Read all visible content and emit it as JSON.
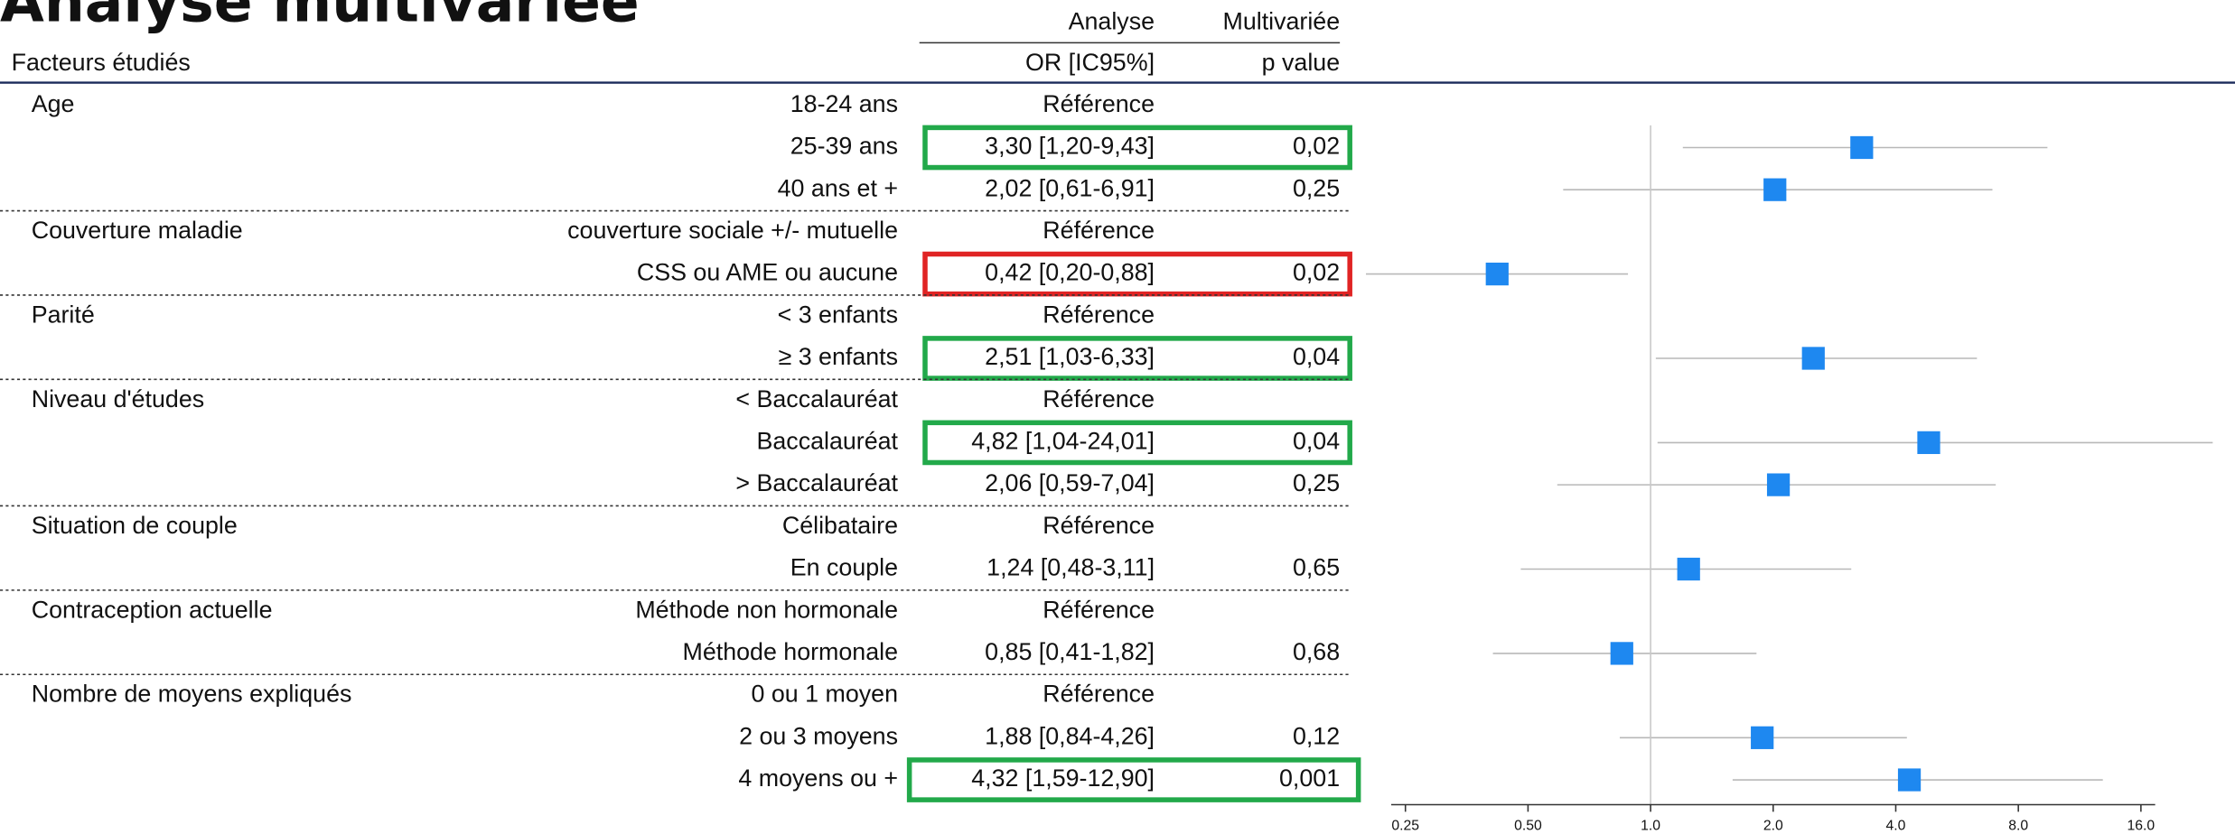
{
  "chart_data": {
    "type": "forest",
    "title": "Analyse multivariée",
    "header": [
      "Analyse",
      "Multivariée"
    ],
    "columns": [
      "Facteurs étudiés",
      "OR [IC95%]",
      "p value"
    ],
    "log_scale": true,
    "marker_color": "#1e88f0",
    "ci_color": "#b8b8b8",
    "xlim": [
      0.25,
      16
    ],
    "xticks": [
      0.25,
      {
        "value": 0.5,
        "label": "0.50"
      },
      {
        "value": 1,
        "label": "1.0"
      },
      {
        "value": 2,
        "label": "2.0"
      },
      {
        "value": 4,
        "label": "4.0"
      },
      {
        "value": 8,
        "label": "8.0"
      },
      {
        "value": 16,
        "label": "16.0"
      }
    ],
    "groups": [
      {
        "name": "Age",
        "levels": [
          {
            "label": "18-24 ans",
            "text": "Référence"
          },
          {
            "label": "25-39 ans",
            "text": "3,30 [1,20-9,43]",
            "p": "0,02",
            "or": 3.3,
            "lo": 1.2,
            "hi": 9.43,
            "highlight": "#22a94a"
          },
          {
            "label": "40 ans et +",
            "text": "2,02 [0,61-6,91]",
            "p": "0,25",
            "or": 2.02,
            "lo": 0.61,
            "hi": 6.91
          }
        ]
      },
      {
        "name": "Couverture maladie",
        "levels": [
          {
            "label": "couverture sociale +/-  mutuelle",
            "text": "Référence"
          },
          {
            "label": "CSS ou AME ou aucune",
            "text": "0,42 [0,20-0,88]",
            "p": "0,02",
            "or": 0.42,
            "lo": 0.2,
            "hi": 0.88,
            "highlight": "#e02424"
          }
        ]
      },
      {
        "name": "Parité",
        "levels": [
          {
            "label": "< 3 enfants",
            "text": "Référence"
          },
          {
            "label": "≥ 3 enfants",
            "text": "2,51 [1,03-6,33]",
            "p": "0,04",
            "or": 2.51,
            "lo": 1.03,
            "hi": 6.33,
            "highlight": "#22a94a"
          }
        ]
      },
      {
        "name": "Niveau d'études",
        "levels": [
          {
            "label": "< Baccalauréat",
            "text": "Référence"
          },
          {
            "label": "Baccalauréat",
            "text": "4,82 [1,04-24,01]",
            "p": "0,04",
            "or": 4.82,
            "lo": 1.04,
            "hi": 24.01,
            "highlight": "#22a94a"
          },
          {
            "label": "> Baccalauréat",
            "text": "2,06 [0,59-7,04]",
            "p": "0,25",
            "or": 2.06,
            "lo": 0.59,
            "hi": 7.04
          }
        ]
      },
      {
        "name": "Situation de couple",
        "levels": [
          {
            "label": "Célibataire",
            "text": "Référence"
          },
          {
            "label": "En couple",
            "text": "1,24 [0,48-3,11]",
            "p": "0,65",
            "or": 1.24,
            "lo": 0.48,
            "hi": 3.11
          }
        ]
      },
      {
        "name": "Contraception actuelle",
        "levels": [
          {
            "label": "Méthode non hormonale",
            "text": "Référence"
          },
          {
            "label": "Méthode hormonale",
            "text": "0,85 [0,41-1,82]",
            "p": "0,68",
            "or": 0.85,
            "lo": 0.41,
            "hi": 1.82
          }
        ]
      },
      {
        "name": "Nombre de moyens expliqués",
        "levels": [
          {
            "label": "0 ou 1 moyen",
            "text": "Référence"
          },
          {
            "label": "2 ou 3 moyens",
            "text": "1,88 [0,84-4,26]",
            "p": "0,12",
            "or": 1.88,
            "lo": 0.84,
            "hi": 4.26
          },
          {
            "label": "4 moyens ou +",
            "text": "4,32 [1,59-12,90]",
            "p": "0,001",
            "or": 4.32,
            "lo": 1.59,
            "hi": 12.9,
            "highlight": "#22a94a"
          }
        ]
      }
    ]
  }
}
